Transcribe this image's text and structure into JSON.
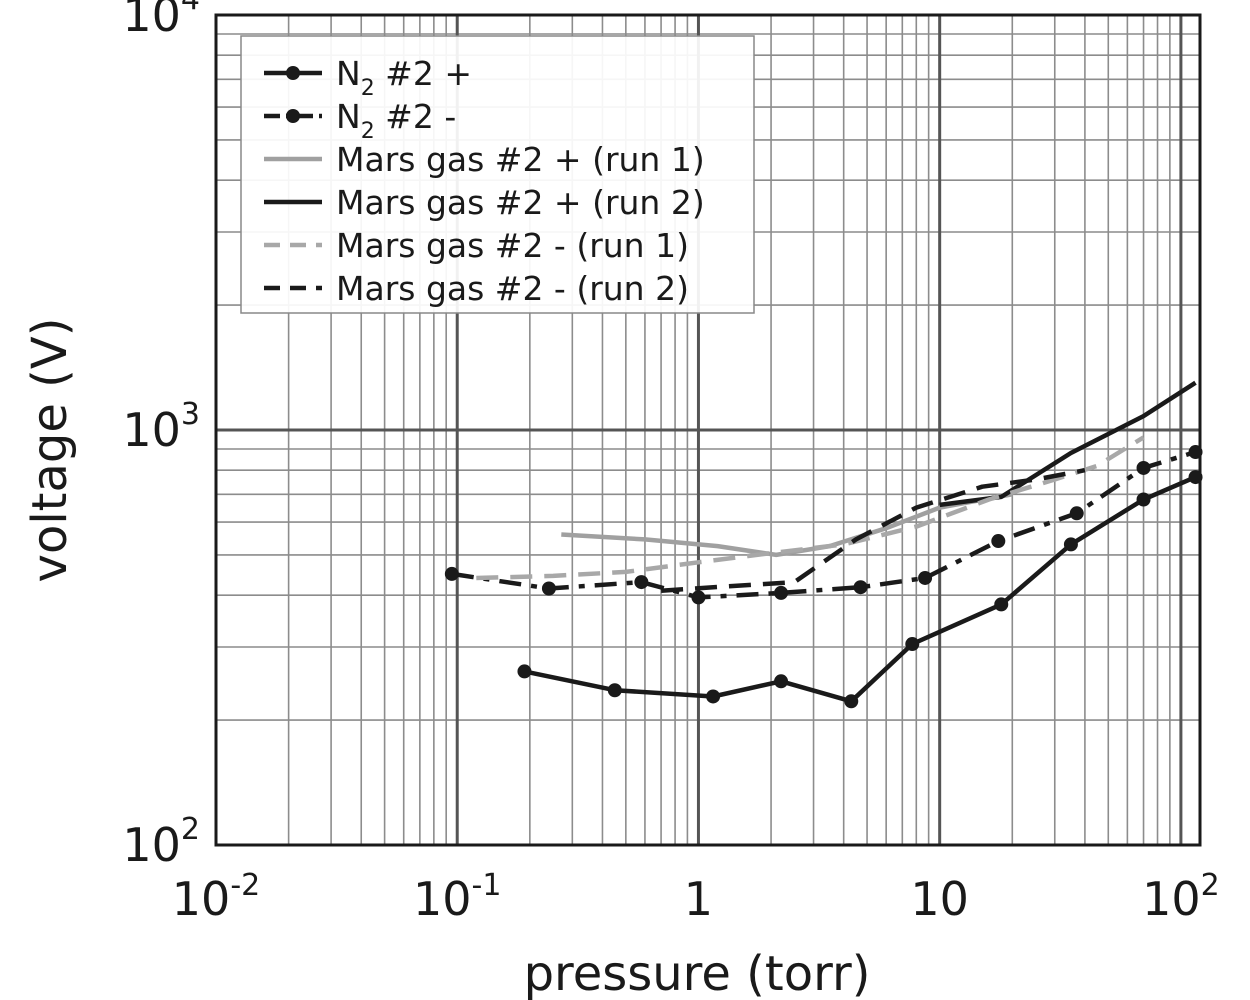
{
  "chart_data": {
    "type": "line",
    "xlabel": "pressure (torr)",
    "ylabel": "voltage (V)",
    "xscale": "log",
    "yscale": "log",
    "xlim": [
      0.01,
      120
    ],
    "ylim": [
      100,
      10000
    ],
    "x_ticks": [
      {
        "base": "10",
        "exp": "-2"
      },
      {
        "base": "10",
        "exp": "-1"
      },
      {
        "base": "1",
        "exp": ""
      },
      {
        "base": "10",
        "exp": ""
      },
      {
        "base": "10",
        "exp": "2"
      }
    ],
    "y_ticks": [
      {
        "base": "10",
        "exp": "2"
      },
      {
        "base": "10",
        "exp": "3"
      },
      {
        "base": "10",
        "exp": "4"
      }
    ],
    "grid": true,
    "legend_position": "top-left",
    "series": [
      {
        "name_main": "N",
        "name_sub": "2",
        "name_rest": " #2 +",
        "color": "#1a1a1a",
        "dash": "solid",
        "markers": true,
        "x": [
          0.19,
          0.45,
          1.15,
          2.2,
          4.3,
          7.7,
          18,
          35,
          70,
          115
        ],
        "y": [
          262,
          236,
          228,
          248,
          222,
          305,
          380,
          530,
          680,
          770
        ]
      },
      {
        "name_main": "N",
        "name_sub": "2",
        "name_rest": " #2 -",
        "color": "#1a1a1a",
        "dash": "dashdot",
        "markers": true,
        "x": [
          0.095,
          0.24,
          0.58,
          1.0,
          2.2,
          4.7,
          8.7,
          17.5,
          37,
          70,
          115
        ],
        "y": [
          450,
          415,
          430,
          395,
          405,
          418,
          440,
          540,
          630,
          810,
          885
        ]
      },
      {
        "name_main": "Mars gas #2 + (run 1)",
        "name_sub": "",
        "name_rest": "",
        "color": "#a0a0a0",
        "dash": "solid",
        "markers": false,
        "x": [
          0.27,
          0.6,
          1.2,
          2.1,
          3.5,
          6,
          10,
          20
        ],
        "y": [
          560,
          545,
          525,
          500,
          525,
          580,
          650,
          700
        ]
      },
      {
        "name_main": "Mars gas #2 + (run 2)",
        "name_sub": "",
        "name_rest": "",
        "color": "#1a1a1a",
        "dash": "solid",
        "markers": false,
        "x": [
          10,
          18,
          35,
          70,
          115
        ],
        "y": [
          660,
          690,
          880,
          1080,
          1300
        ]
      },
      {
        "name_main": "Mars gas #2 - (run 1)",
        "name_sub": "",
        "name_rest": "",
        "color": "#a8a8a8",
        "dash": "dashed",
        "markers": false,
        "x": [
          0.12,
          0.25,
          0.5,
          1,
          2,
          4,
          8,
          16,
          30,
          45,
          70
        ],
        "y": [
          440,
          445,
          455,
          480,
          505,
          530,
          585,
          680,
          760,
          820,
          960
        ]
      },
      {
        "name_main": "Mars gas #2 - (run 2)",
        "name_sub": "",
        "name_rest": "",
        "color": "#1a1a1a",
        "dash": "dashed",
        "markers": false,
        "x": [
          0.7,
          1.3,
          2.5,
          4.5,
          8,
          15,
          25,
          40
        ],
        "y": [
          410,
          420,
          430,
          545,
          650,
          730,
          760,
          800
        ]
      }
    ]
  }
}
